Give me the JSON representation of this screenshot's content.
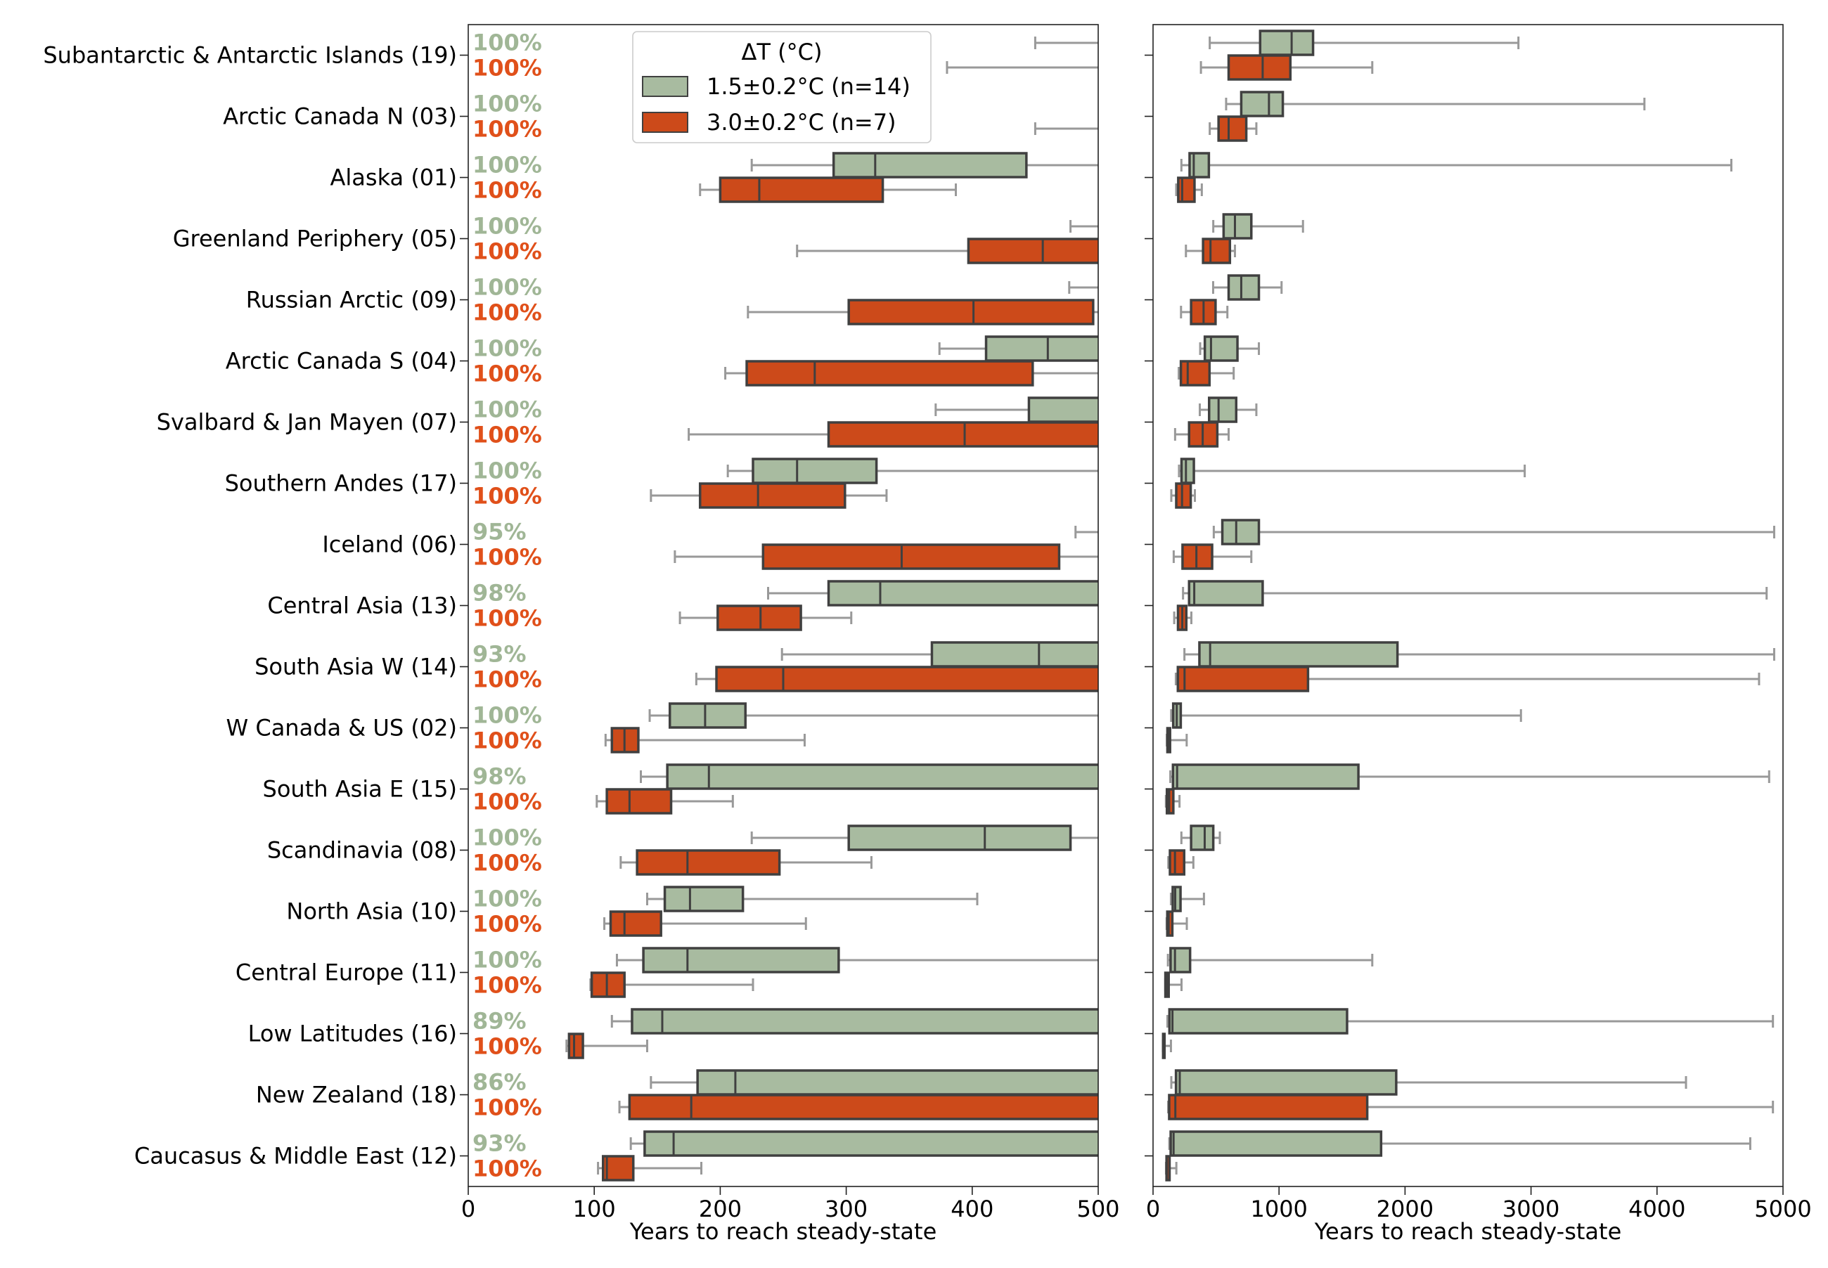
{
  "chart_data": {
    "type": "boxplot",
    "legend": {
      "title": "ΔT (°C)",
      "placement": "top-center",
      "entries": [
        {
          "label": "1.5±0.2°C (n=14)",
          "color": "#a8bba0"
        },
        {
          "label": "3.0±0.2°C (n=7)",
          "color": "#cc4a1a"
        }
      ]
    },
    "colors": {
      "low": "#a8bba0",
      "high": "#cc4a1a",
      "box_edge": "#404040",
      "whisker": "#999999",
      "pct_low": "#a0b696",
      "pct_high": "#e0501a"
    },
    "regions": [
      {
        "name": "Subantarctic & Antarctic Islands (19)",
        "pct_low": "100%",
        "pct_high": "100%",
        "low": {
          "wlo": 450,
          "q1": 850,
          "med": 1100,
          "q3": 1270,
          "whi": 2900
        },
        "high": {
          "wlo": 380,
          "q1": 600,
          "med": 870,
          "q3": 1090,
          "whi": 1740
        }
      },
      {
        "name": "Arctic Canada N (03)",
        "pct_low": "100%",
        "pct_high": "100%",
        "low": {
          "wlo": 580,
          "q1": 700,
          "med": 920,
          "q3": 1030,
          "whi": 3900
        },
        "high": {
          "wlo": 450,
          "q1": 520,
          "med": 600,
          "q3": 740,
          "whi": 820
        }
      },
      {
        "name": "Alaska (01)",
        "pct_low": "100%",
        "pct_high": "100%",
        "low": {
          "wlo": 225,
          "q1": 290,
          "med": 323,
          "q3": 443,
          "whi": 4590
        },
        "high": {
          "wlo": 184,
          "q1": 200,
          "med": 231,
          "q3": 329,
          "whi": 387
        }
      },
      {
        "name": "Greenland Periphery (05)",
        "pct_low": "100%",
        "pct_high": "100%",
        "low": {
          "wlo": 478,
          "q1": 560,
          "med": 650,
          "q3": 780,
          "whi": 1190
        },
        "high": {
          "wlo": 261,
          "q1": 397,
          "med": 456,
          "q3": 610,
          "whi": 650
        }
      },
      {
        "name": "Russian Arctic (09)",
        "pct_low": "100%",
        "pct_high": "100%",
        "low": {
          "wlo": 477,
          "q1": 600,
          "med": 700,
          "q3": 840,
          "whi": 1020
        },
        "high": {
          "wlo": 222,
          "q1": 302,
          "med": 401,
          "q3": 496,
          "whi": 590
        }
      },
      {
        "name": "Arctic Canada S (04)",
        "pct_low": "100%",
        "pct_high": "100%",
        "low": {
          "wlo": 374,
          "q1": 411,
          "med": 460,
          "q3": 670,
          "whi": 840
        },
        "high": {
          "wlo": 204,
          "q1": 221,
          "med": 275,
          "q3": 448,
          "whi": 640
        }
      },
      {
        "name": "Svalbard & Jan Mayen (07)",
        "pct_low": "100%",
        "pct_high": "100%",
        "low": {
          "wlo": 371,
          "q1": 445,
          "med": 520,
          "q3": 660,
          "whi": 820
        },
        "high": {
          "wlo": 175,
          "q1": 286,
          "med": 394,
          "q3": 510,
          "whi": 600
        }
      },
      {
        "name": "Southern Andes (17)",
        "pct_low": "100%",
        "pct_high": "100%",
        "low": {
          "wlo": 206,
          "q1": 226,
          "med": 261,
          "q3": 324,
          "whi": 2950
        },
        "high": {
          "wlo": 145,
          "q1": 184,
          "med": 230,
          "q3": 299,
          "whi": 332
        }
      },
      {
        "name": "Iceland (06)",
        "pct_low": "95%",
        "pct_high": "100%",
        "low": {
          "wlo": 482,
          "q1": 550,
          "med": 660,
          "q3": 840,
          "whi": 4930
        },
        "high": {
          "wlo": 164,
          "q1": 234,
          "med": 344,
          "q3": 469,
          "whi": 780
        }
      },
      {
        "name": "Central Asia (13)",
        "pct_low": "98%",
        "pct_high": "100%",
        "low": {
          "wlo": 238,
          "q1": 286,
          "med": 327,
          "q3": 870,
          "whi": 4870
        },
        "high": {
          "wlo": 168,
          "q1": 198,
          "med": 232,
          "q3": 264,
          "whi": 304
        }
      },
      {
        "name": "South Asia W (14)",
        "pct_low": "93%",
        "pct_high": "100%",
        "low": {
          "wlo": 249,
          "q1": 368,
          "med": 453,
          "q3": 1940,
          "whi": 4930
        },
        "high": {
          "wlo": 181,
          "q1": 197,
          "med": 250,
          "q3": 1230,
          "whi": 4810
        }
      },
      {
        "name": "W Canada & US (02)",
        "pct_low": "100%",
        "pct_high": "100%",
        "low": {
          "wlo": 144,
          "q1": 160,
          "med": 188,
          "q3": 220,
          "whi": 2920
        },
        "high": {
          "wlo": 109,
          "q1": 114,
          "med": 124,
          "q3": 135,
          "whi": 267
        }
      },
      {
        "name": "South Asia E (15)",
        "pct_low": "98%",
        "pct_high": "100%",
        "low": {
          "wlo": 137,
          "q1": 158,
          "med": 191,
          "q3": 1630,
          "whi": 4890
        },
        "high": {
          "wlo": 102,
          "q1": 110,
          "med": 128,
          "q3": 161,
          "whi": 210
        }
      },
      {
        "name": "Scandinavia (08)",
        "pct_low": "100%",
        "pct_high": "100%",
        "low": {
          "wlo": 225,
          "q1": 302,
          "med": 410,
          "q3": 478,
          "whi": 530
        },
        "high": {
          "wlo": 121,
          "q1": 134,
          "med": 174,
          "q3": 247,
          "whi": 320
        }
      },
      {
        "name": "North Asia (10)",
        "pct_low": "100%",
        "pct_high": "100%",
        "low": {
          "wlo": 142,
          "q1": 156,
          "med": 176,
          "q3": 218,
          "whi": 404
        },
        "high": {
          "wlo": 108,
          "q1": 113,
          "med": 124,
          "q3": 153,
          "whi": 268
        }
      },
      {
        "name": "Central Europe (11)",
        "pct_low": "100%",
        "pct_high": "100%",
        "low": {
          "wlo": 118,
          "q1": 139,
          "med": 174,
          "q3": 294,
          "whi": 1740
        },
        "high": {
          "wlo": 97,
          "q1": 98,
          "med": 110,
          "q3": 124,
          "whi": 226
        }
      },
      {
        "name": "Low Latitudes (16)",
        "pct_low": "89%",
        "pct_high": "100%",
        "low": {
          "wlo": 114,
          "q1": 130,
          "med": 154,
          "q3": 1540,
          "whi": 4920
        },
        "high": {
          "wlo": 78,
          "q1": 80,
          "med": 84,
          "q3": 91,
          "whi": 142
        }
      },
      {
        "name": "New Zealand (18)",
        "pct_low": "86%",
        "pct_high": "100%",
        "low": {
          "wlo": 145,
          "q1": 182,
          "med": 212,
          "q3": 1930,
          "whi": 4230
        },
        "high": {
          "wlo": 120,
          "q1": 128,
          "med": 177,
          "q3": 1700,
          "whi": 4920
        }
      },
      {
        "name": "Caucasus & Middle East (12)",
        "pct_low": "93%",
        "pct_high": "100%",
        "low": {
          "wlo": 129,
          "q1": 140,
          "med": 163,
          "q3": 1810,
          "whi": 4740
        },
        "high": {
          "wlo": 103,
          "q1": 107,
          "med": 110,
          "q3": 131,
          "whi": 185
        }
      }
    ],
    "panels": [
      {
        "xlabel": "Years to reach steady-state",
        "xlim": [
          0,
          500
        ],
        "ticks": [
          "0",
          "100",
          "200",
          "300",
          "400",
          "500"
        ],
        "tick_values": [
          0,
          100,
          200,
          300,
          400,
          500
        ],
        "show_labels": true
      },
      {
        "xlabel": "Years to reach steady-state",
        "xlim": [
          0,
          5000
        ],
        "ticks": [
          "0",
          "1000",
          "2000",
          "3000",
          "4000",
          "5000"
        ],
        "tick_values": [
          0,
          1000,
          2000,
          3000,
          4000,
          5000
        ],
        "show_labels": false
      }
    ]
  }
}
